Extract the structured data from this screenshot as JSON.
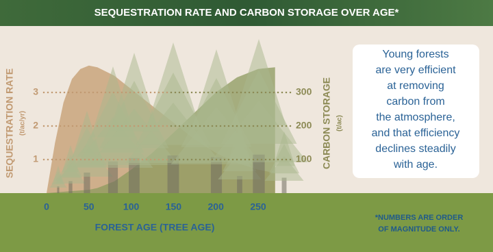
{
  "chart_data": {
    "type": "area",
    "title": "SEQUESTRATION RATE AND CARBON STORAGE OVER AGE*",
    "xlabel": "FOREST AGE (TREE AGE)",
    "ylabel": "SEQUESTRATION RATE",
    "ylabel_unit": "(t/ac/yr)",
    "y2label": "CARBON STORAGE",
    "y2label_unit": "(t/ac)",
    "x": [
      0,
      10,
      20,
      30,
      40,
      50,
      60,
      80,
      100,
      125,
      150,
      175,
      200,
      225,
      250,
      270
    ],
    "series": [
      {
        "color": "#c9a47c",
        "values": [
          0,
          1.5,
          2.7,
          3.4,
          3.7,
          3.8,
          3.75,
          3.5,
          3.1,
          2.6,
          2.1,
          1.6,
          1.2,
          0.9,
          0.7,
          0.6
        ]
      },
      {
        "color": "#8c9a5e",
        "axis": "y2",
        "values": [
          0,
          2,
          4,
          6,
          8,
          10,
          15,
          35,
          70,
          120,
          180,
          240,
          300,
          345,
          370,
          375
        ]
      }
    ],
    "xlim": [
      0,
      250
    ],
    "xticks": [
      0,
      50,
      100,
      150,
      200,
      250
    ],
    "ylim": [
      0,
      4
    ],
    "yticks": [
      1,
      2,
      3
    ],
    "y2lim": [
      0,
      400
    ],
    "y2ticks": [
      100,
      200,
      300
    ],
    "annotation": [
      "Young forests",
      "are very efficient",
      "at removing",
      "carbon from",
      "the atmosphere,",
      "and that efficiency",
      "declines steadily",
      "with age."
    ],
    "footnote": [
      "*NUMBERS ARE ORDER",
      "OF MAGNITUDE ONLY."
    ]
  }
}
